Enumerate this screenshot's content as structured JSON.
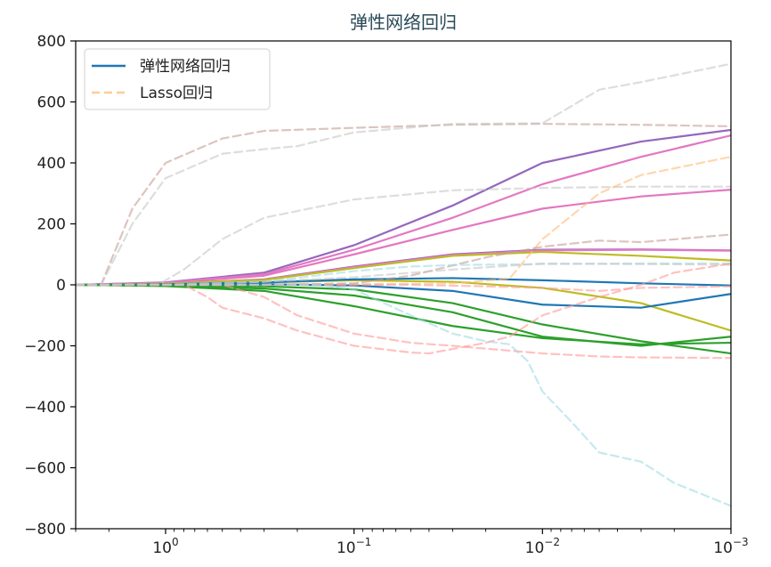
{
  "chart_data": {
    "type": "line",
    "title": "弹性网络回归",
    "xlabel": "",
    "ylabel": "",
    "x_scale": "log",
    "x_reversed": true,
    "x_range": [
      3.0,
      0.001
    ],
    "ylim": [
      -800,
      800
    ],
    "x_ticks": [
      {
        "value": 1,
        "base": "10",
        "exp": "0"
      },
      {
        "value": 0.1,
        "base": "10",
        "exp": "−1"
      },
      {
        "value": 0.01,
        "base": "10",
        "exp": "−2"
      },
      {
        "value": 0.001,
        "base": "10",
        "exp": "−3"
      }
    ],
    "y_ticks": [
      {
        "value": 800,
        "label": "800"
      },
      {
        "value": 600,
        "label": "600"
      },
      {
        "value": 400,
        "label": "400"
      },
      {
        "value": 200,
        "label": "200"
      },
      {
        "value": 0,
        "label": "0"
      },
      {
        "value": -200,
        "label": "−200"
      },
      {
        "value": -400,
        "label": "−400"
      },
      {
        "value": -600,
        "label": "−600"
      },
      {
        "value": -800,
        "label": "−800"
      }
    ],
    "grid": false,
    "legend": {
      "placement": "top-left",
      "entries": [
        {
          "label": "弹性网络回归",
          "style": "solid",
          "color": "#1f77b4"
        },
        {
          "label": "Lasso回归",
          "style": "dashed",
          "color": "#ffbb78"
        }
      ]
    },
    "series": [
      {
        "group": "elastic",
        "style": "solid",
        "color": "#9467bd",
        "points": [
          [
            3,
            0
          ],
          [
            1,
            8
          ],
          [
            0.3,
            40
          ],
          [
            0.1,
            130
          ],
          [
            0.03,
            260
          ],
          [
            0.01,
            400
          ],
          [
            0.003,
            470
          ],
          [
            0.001,
            508
          ]
        ]
      },
      {
        "group": "elastic",
        "style": "solid",
        "color": "#e377c2",
        "points": [
          [
            3,
            0
          ],
          [
            1,
            7
          ],
          [
            0.3,
            35
          ],
          [
            0.1,
            115
          ],
          [
            0.03,
            220
          ],
          [
            0.01,
            330
          ],
          [
            0.003,
            420
          ],
          [
            0.001,
            490
          ]
        ]
      },
      {
        "group": "elastic",
        "style": "solid",
        "color": "#e377c2",
        "points": [
          [
            3,
            0
          ],
          [
            1,
            6
          ],
          [
            0.3,
            30
          ],
          [
            0.1,
            100
          ],
          [
            0.03,
            180
          ],
          [
            0.01,
            250
          ],
          [
            0.003,
            290
          ],
          [
            0.001,
            312
          ]
        ]
      },
      {
        "group": "elastic",
        "style": "solid",
        "color": "#9467bd",
        "points": [
          [
            3,
            0
          ],
          [
            1,
            4
          ],
          [
            0.3,
            18
          ],
          [
            0.1,
            60
          ],
          [
            0.03,
            100
          ],
          [
            0.01,
            115
          ],
          [
            0.003,
            116
          ],
          [
            0.001,
            113
          ]
        ]
      },
      {
        "group": "elastic",
        "style": "solid",
        "color": "#e377c2",
        "points": [
          [
            3,
            0
          ],
          [
            1,
            4
          ],
          [
            0.3,
            17
          ],
          [
            0.1,
            58
          ],
          [
            0.03,
            98
          ],
          [
            0.01,
            113
          ],
          [
            0.003,
            115
          ],
          [
            0.001,
            112
          ]
        ]
      },
      {
        "group": "elastic",
        "style": "solid",
        "color": "#bcbd22",
        "points": [
          [
            3,
            0
          ],
          [
            1,
            4
          ],
          [
            0.3,
            16
          ],
          [
            0.1,
            55
          ],
          [
            0.03,
            95
          ],
          [
            0.01,
            108
          ],
          [
            0.003,
            95
          ],
          [
            0.001,
            80
          ]
        ]
      },
      {
        "group": "elastic",
        "style": "solid",
        "color": "#bcbd22",
        "points": [
          [
            3,
            0
          ],
          [
            1,
            2
          ],
          [
            0.3,
            8
          ],
          [
            0.1,
            15
          ],
          [
            0.03,
            10
          ],
          [
            0.01,
            -10
          ],
          [
            0.003,
            -60
          ],
          [
            0.001,
            -150
          ]
        ]
      },
      {
        "group": "elastic",
        "style": "solid",
        "color": "#1f77b4",
        "points": [
          [
            3,
            0
          ],
          [
            1,
            2
          ],
          [
            0.3,
            8
          ],
          [
            0.1,
            18
          ],
          [
            0.03,
            22
          ],
          [
            0.01,
            15
          ],
          [
            0.003,
            5
          ],
          [
            0.001,
            -2
          ]
        ]
      },
      {
        "group": "elastic",
        "style": "solid",
        "color": "#1f77b4",
        "points": [
          [
            3,
            0
          ],
          [
            1,
            1
          ],
          [
            0.3,
            2
          ],
          [
            0.1,
            -2
          ],
          [
            0.03,
            -20
          ],
          [
            0.01,
            -65
          ],
          [
            0.003,
            -75
          ],
          [
            0.001,
            -30
          ]
        ]
      },
      {
        "group": "elastic",
        "style": "solid",
        "color": "#2ca02c",
        "points": [
          [
            3,
            0
          ],
          [
            1,
            -3
          ],
          [
            0.3,
            -5
          ],
          [
            0.1,
            -15
          ],
          [
            0.03,
            -60
          ],
          [
            0.01,
            -130
          ],
          [
            0.003,
            -185
          ],
          [
            0.001,
            -225
          ]
        ]
      },
      {
        "group": "elastic",
        "style": "solid",
        "color": "#2ca02c",
        "points": [
          [
            3,
            0
          ],
          [
            1,
            -4
          ],
          [
            0.3,
            -20
          ],
          [
            0.1,
            -70
          ],
          [
            0.03,
            -135
          ],
          [
            0.01,
            -175
          ],
          [
            0.003,
            -195
          ],
          [
            0.001,
            -190
          ]
        ]
      },
      {
        "group": "elastic",
        "style": "solid",
        "color": "#2ca02c",
        "points": [
          [
            3,
            0
          ],
          [
            1,
            -3
          ],
          [
            0.3,
            -12
          ],
          [
            0.1,
            -35
          ],
          [
            0.03,
            -90
          ],
          [
            0.01,
            -170
          ],
          [
            0.003,
            -200
          ],
          [
            0.001,
            -170
          ]
        ]
      },
      {
        "group": "lasso",
        "style": "dashed",
        "color": "#c49c94",
        "points": [
          [
            3,
            0
          ],
          [
            2.2,
            0
          ],
          [
            1.5,
            250
          ],
          [
            1,
            400
          ],
          [
            0.5,
            480
          ],
          [
            0.3,
            505
          ],
          [
            0.1,
            515
          ],
          [
            0.03,
            525
          ],
          [
            0.01,
            528
          ],
          [
            0.003,
            525
          ],
          [
            0.001,
            520
          ]
        ]
      },
      {
        "group": "lasso",
        "style": "dashed",
        "color": "#c7c7c7",
        "points": [
          [
            3,
            0
          ],
          [
            2.2,
            0
          ],
          [
            1.5,
            200
          ],
          [
            1,
            350
          ],
          [
            0.5,
            430
          ],
          [
            0.3,
            445
          ],
          [
            0.2,
            455
          ],
          [
            0.1,
            500
          ],
          [
            0.03,
            528
          ],
          [
            0.01,
            530
          ],
          [
            0.005,
            640
          ],
          [
            0.003,
            665
          ],
          [
            0.001,
            725
          ]
        ]
      },
      {
        "group": "lasso",
        "style": "dashed",
        "color": "#c7c7c7",
        "points": [
          [
            3,
            0
          ],
          [
            1.1,
            0
          ],
          [
            0.8,
            50
          ],
          [
            0.5,
            150
          ],
          [
            0.3,
            220
          ],
          [
            0.1,
            280
          ],
          [
            0.03,
            310
          ],
          [
            0.01,
            318
          ],
          [
            0.003,
            322
          ],
          [
            0.001,
            322
          ]
        ]
      },
      {
        "group": "lasso",
        "style": "dashed",
        "color": "#ffbb78",
        "points": [
          [
            3,
            0
          ],
          [
            0.3,
            0
          ],
          [
            0.1,
            2
          ],
          [
            0.03,
            5
          ],
          [
            0.015,
            20
          ],
          [
            0.01,
            150
          ],
          [
            0.005,
            300
          ],
          [
            0.003,
            360
          ],
          [
            0.001,
            420
          ]
        ]
      },
      {
        "group": "lasso",
        "style": "dashed",
        "color": "#c49c94",
        "points": [
          [
            3,
            0
          ],
          [
            0.3,
            0
          ],
          [
            0.1,
            5
          ],
          [
            0.05,
            30
          ],
          [
            0.02,
            90
          ],
          [
            0.01,
            125
          ],
          [
            0.005,
            145
          ],
          [
            0.003,
            140
          ],
          [
            0.001,
            165
          ]
        ]
      },
      {
        "group": "lasso",
        "style": "dashed",
        "color": "#9edae5",
        "points": [
          [
            3,
            0
          ],
          [
            1,
            1
          ],
          [
            0.3,
            10
          ],
          [
            0.1,
            45
          ],
          [
            0.05,
            60
          ],
          [
            0.03,
            65
          ],
          [
            0.01,
            68
          ],
          [
            0.003,
            70
          ],
          [
            0.001,
            70
          ]
        ]
      },
      {
        "group": "lasso",
        "style": "dashed",
        "color": "#c7c7c7",
        "points": [
          [
            3,
            0
          ],
          [
            1,
            0
          ],
          [
            0.3,
            10
          ],
          [
            0.1,
            25
          ],
          [
            0.03,
            50
          ],
          [
            0.01,
            70
          ],
          [
            0.003,
            68
          ],
          [
            0.001,
            66
          ]
        ]
      },
      {
        "group": "lasso",
        "style": "dashed",
        "color": "#ff9896",
        "points": [
          [
            3,
            0
          ],
          [
            0.3,
            0
          ],
          [
            0.05,
            0
          ],
          [
            0.02,
            -5
          ],
          [
            0.01,
            -10
          ],
          [
            0.005,
            -20
          ],
          [
            0.003,
            -10
          ],
          [
            0.001,
            -5
          ]
        ]
      },
      {
        "group": "lasso",
        "style": "dashed",
        "color": "#ff9896",
        "points": [
          [
            3,
            0
          ],
          [
            0.8,
            0
          ],
          [
            0.6,
            -40
          ],
          [
            0.5,
            -75
          ],
          [
            0.3,
            -110
          ],
          [
            0.2,
            -150
          ],
          [
            0.1,
            -200
          ],
          [
            0.05,
            -222
          ],
          [
            0.04,
            -225
          ],
          [
            0.02,
            -190
          ],
          [
            0.015,
            -170
          ],
          [
            0.01,
            -100
          ],
          [
            0.005,
            -40
          ],
          [
            0.003,
            0
          ],
          [
            0.002,
            40
          ],
          [
            0.001,
            70
          ]
        ]
      },
      {
        "group": "lasso",
        "style": "dashed",
        "color": "#ff9896",
        "points": [
          [
            3,
            0
          ],
          [
            0.5,
            0
          ],
          [
            0.3,
            -40
          ],
          [
            0.2,
            -100
          ],
          [
            0.1,
            -160
          ],
          [
            0.05,
            -190
          ],
          [
            0.03,
            -200
          ],
          [
            0.01,
            -225
          ],
          [
            0.005,
            -235
          ],
          [
            0.003,
            -238
          ],
          [
            0.001,
            -240
          ]
        ]
      },
      {
        "group": "lasso",
        "style": "dashed",
        "color": "#9edae5",
        "points": [
          [
            3,
            0
          ],
          [
            0.15,
            0
          ],
          [
            0.1,
            -15
          ],
          [
            0.05,
            -100
          ],
          [
            0.03,
            -160
          ],
          [
            0.02,
            -185
          ],
          [
            0.015,
            -195
          ],
          [
            0.012,
            -250
          ],
          [
            0.01,
            -350
          ],
          [
            0.007,
            -450
          ],
          [
            0.005,
            -550
          ],
          [
            0.003,
            -580
          ],
          [
            0.002,
            -650
          ],
          [
            0.001,
            -725
          ]
        ]
      }
    ]
  }
}
